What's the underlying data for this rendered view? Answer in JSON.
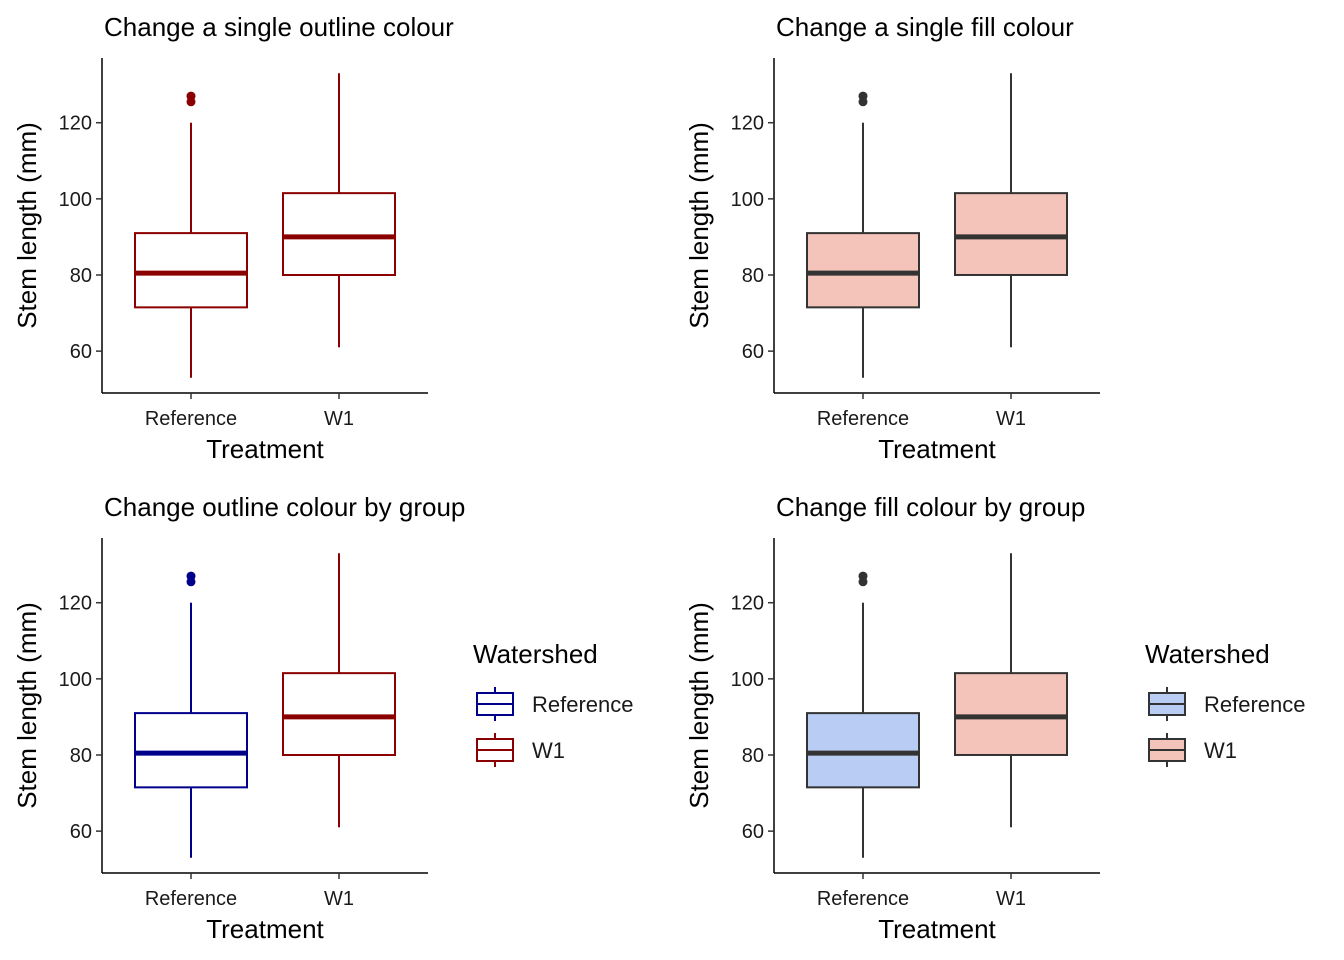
{
  "chart_data": [
    {
      "type": "box",
      "title": "Change a single outline colour",
      "xlabel": "Treatment",
      "ylabel": "Stem length (mm)",
      "ylim": [
        49,
        137
      ],
      "yticks": [
        60,
        80,
        100,
        120
      ],
      "categories": [
        "Reference",
        "W1"
      ],
      "boxes": [
        {
          "category": "Reference",
          "lower_whisker": 53,
          "q1": 71.5,
          "median": 80.5,
          "q3": 91,
          "upper_whisker": 120,
          "outliers": [
            125.5,
            127
          ]
        },
        {
          "category": "W1",
          "lower_whisker": 61,
          "q1": 80,
          "median": 90,
          "q3": 101.5,
          "upper_whisker": 133,
          "outliers": []
        }
      ],
      "style": {
        "outline": [
          "#8B0000",
          "#8B0000"
        ],
        "fill": [
          "none",
          "none"
        ],
        "outlier": [
          "#8B0000",
          "#8B0000"
        ]
      },
      "legend": null
    },
    {
      "type": "box",
      "title": "Change a single fill colour",
      "xlabel": "Treatment",
      "ylabel": "Stem length (mm)",
      "ylim": [
        49,
        137
      ],
      "yticks": [
        60,
        80,
        100,
        120
      ],
      "categories": [
        "Reference",
        "W1"
      ],
      "boxes": [
        {
          "category": "Reference",
          "lower_whisker": 53,
          "q1": 71.5,
          "median": 80.5,
          "q3": 91,
          "upper_whisker": 120,
          "outliers": [
            125.5,
            127
          ]
        },
        {
          "category": "W1",
          "lower_whisker": 61,
          "q1": 80,
          "median": 90,
          "q3": 101.5,
          "upper_whisker": 133,
          "outliers": []
        }
      ],
      "style": {
        "outline": [
          "#333333",
          "#333333"
        ],
        "fill": [
          "#F4C3B9",
          "#F4C3B9"
        ],
        "outlier": [
          "#333333",
          "#333333"
        ]
      },
      "legend": null
    },
    {
      "type": "box",
      "title": "Change outline colour by group",
      "xlabel": "Treatment",
      "ylabel": "Stem length (mm)",
      "ylim": [
        49,
        137
      ],
      "yticks": [
        60,
        80,
        100,
        120
      ],
      "categories": [
        "Reference",
        "W1"
      ],
      "boxes": [
        {
          "category": "Reference",
          "lower_whisker": 53,
          "q1": 71.5,
          "median": 80.5,
          "q3": 91,
          "upper_whisker": 120,
          "outliers": [
            125.5,
            127
          ]
        },
        {
          "category": "W1",
          "lower_whisker": 61,
          "q1": 80,
          "median": 90,
          "q3": 101.5,
          "upper_whisker": 133,
          "outliers": []
        }
      ],
      "style": {
        "outline": [
          "#00008B",
          "#8B0000"
        ],
        "fill": [
          "none",
          "none"
        ],
        "outlier": [
          "#00008B",
          "#8B0000"
        ]
      },
      "legend": {
        "title": "Watershed",
        "placement": "right",
        "entries": [
          "Reference",
          "W1"
        ]
      }
    },
    {
      "type": "box",
      "title": "Change fill colour by group",
      "xlabel": "Treatment",
      "ylabel": "Stem length (mm)",
      "ylim": [
        49,
        137
      ],
      "yticks": [
        60,
        80,
        100,
        120
      ],
      "categories": [
        "Reference",
        "W1"
      ],
      "boxes": [
        {
          "category": "Reference",
          "lower_whisker": 53,
          "q1": 71.5,
          "median": 80.5,
          "q3": 91,
          "upper_whisker": 120,
          "outliers": [
            125.5,
            127
          ]
        },
        {
          "category": "W1",
          "lower_whisker": 61,
          "q1": 80,
          "median": 90,
          "q3": 101.5,
          "upper_whisker": 133,
          "outliers": []
        }
      ],
      "style": {
        "outline": [
          "#333333",
          "#333333"
        ],
        "fill": [
          "#B8CCF4",
          "#F4C3B9"
        ],
        "outlier": [
          "#333333",
          "#333333"
        ]
      },
      "legend": {
        "title": "Watershed",
        "placement": "right",
        "entries": [
          "Reference",
          "W1"
        ]
      }
    }
  ]
}
